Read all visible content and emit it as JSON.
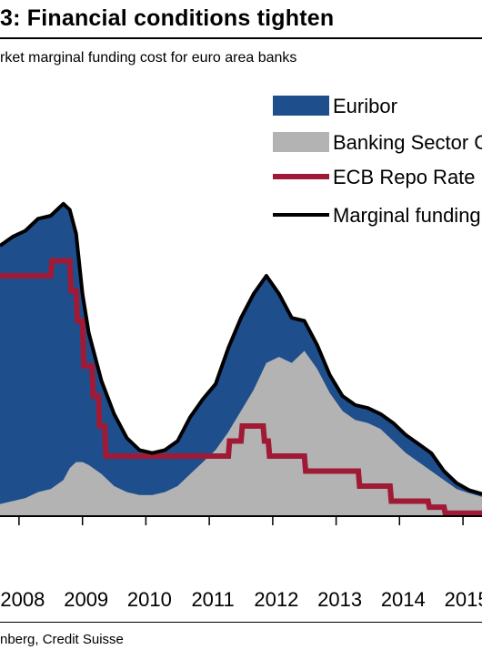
{
  "title": "3: Financial conditions tighten",
  "subtitle": "rket marginal funding cost for euro area banks",
  "source": "nberg, Credit Suisse",
  "colors": {
    "euribor": "#1f4e8c",
    "banking_sector": "#b3b3b3",
    "ecb_repo": "#a01a36",
    "marginal_funding": "#000000"
  },
  "chart_data": {
    "type": "area",
    "x_tick_labels": [
      "2008",
      "2009",
      "2010",
      "2011",
      "2012",
      "2013",
      "2014",
      "2015"
    ],
    "xlim": [
      2007.7,
      2015.3
    ],
    "ylim": [
      0,
      7
    ],
    "grid": false,
    "legend_position": "top-right",
    "series": [
      {
        "name": "Euribor",
        "kind": "stacked-area",
        "color_key": "euribor",
        "x": [
          2007.7,
          2007.9,
          2008.1,
          2008.3,
          2008.5,
          2008.7,
          2008.8,
          2008.9,
          2009.0,
          2009.1,
          2009.3,
          2009.5,
          2009.7,
          2009.9,
          2010.1,
          2010.3,
          2010.5,
          2010.7,
          2010.9,
          2011.1,
          2011.3,
          2011.5,
          2011.7,
          2011.9,
          2012.1,
          2012.3,
          2012.5,
          2012.7,
          2012.9,
          2013.1,
          2013.3,
          2013.5,
          2013.7,
          2013.9,
          2014.1,
          2014.3,
          2014.5,
          2014.7,
          2014.9,
          2015.1,
          2015.3
        ],
        "y": [
          4.3,
          4.4,
          4.45,
          4.55,
          4.55,
          4.6,
          4.3,
          3.8,
          2.8,
          2.2,
          1.55,
          1.2,
          0.9,
          0.75,
          0.7,
          0.7,
          0.75,
          0.95,
          1.05,
          1.1,
          1.4,
          1.55,
          1.6,
          1.45,
          1.05,
          0.75,
          0.5,
          0.4,
          0.3,
          0.25,
          0.25,
          0.25,
          0.25,
          0.3,
          0.3,
          0.3,
          0.3,
          0.15,
          0.1,
          0.05,
          0.05
        ]
      },
      {
        "name": "Banking Sector C",
        "kind": "stacked-area",
        "color_key": "banking_sector",
        "x": [
          2007.7,
          2007.9,
          2008.1,
          2008.3,
          2008.5,
          2008.7,
          2008.8,
          2008.9,
          2009.0,
          2009.1,
          2009.3,
          2009.5,
          2009.7,
          2009.9,
          2010.1,
          2010.3,
          2010.5,
          2010.7,
          2010.9,
          2011.1,
          2011.3,
          2011.5,
          2011.7,
          2011.9,
          2012.1,
          2012.3,
          2012.5,
          2012.7,
          2012.9,
          2013.1,
          2013.3,
          2013.5,
          2013.7,
          2013.9,
          2014.1,
          2014.3,
          2014.5,
          2014.7,
          2014.9,
          2015.1,
          2015.3
        ],
        "y": [
          0.2,
          0.25,
          0.3,
          0.4,
          0.45,
          0.6,
          0.8,
          0.9,
          0.9,
          0.85,
          0.7,
          0.5,
          0.4,
          0.35,
          0.35,
          0.4,
          0.5,
          0.7,
          0.9,
          1.1,
          1.4,
          1.75,
          2.1,
          2.55,
          2.65,
          2.55,
          2.75,
          2.45,
          2.05,
          1.75,
          1.6,
          1.55,
          1.45,
          1.25,
          1.05,
          0.9,
          0.75,
          0.6,
          0.45,
          0.38,
          0.32
        ]
      },
      {
        "name": "ECB Repo Rate",
        "kind": "step-line",
        "color_key": "ecb_repo",
        "x": [
          2007.7,
          2008.5,
          2008.52,
          2008.8,
          2008.82,
          2008.9,
          2008.92,
          2009.0,
          2009.02,
          2009.15,
          2009.17,
          2009.25,
          2009.27,
          2009.35,
          2009.37,
          2011.3,
          2011.32,
          2011.5,
          2011.52,
          2011.85,
          2011.87,
          2011.93,
          2011.95,
          2012.5,
          2012.52,
          2013.35,
          2013.37,
          2013.85,
          2013.87,
          2014.45,
          2014.47,
          2014.7,
          2014.72,
          2015.3
        ],
        "y": [
          4.0,
          4.0,
          4.25,
          4.25,
          3.75,
          3.75,
          3.25,
          3.25,
          2.5,
          2.5,
          2.0,
          2.0,
          1.5,
          1.5,
          1.0,
          1.0,
          1.25,
          1.25,
          1.5,
          1.5,
          1.25,
          1.25,
          1.0,
          1.0,
          0.75,
          0.75,
          0.5,
          0.5,
          0.25,
          0.25,
          0.15,
          0.15,
          0.05,
          0.05
        ]
      },
      {
        "name": "Marginal funding",
        "kind": "line",
        "color_key": "marginal_funding"
      }
    ]
  }
}
